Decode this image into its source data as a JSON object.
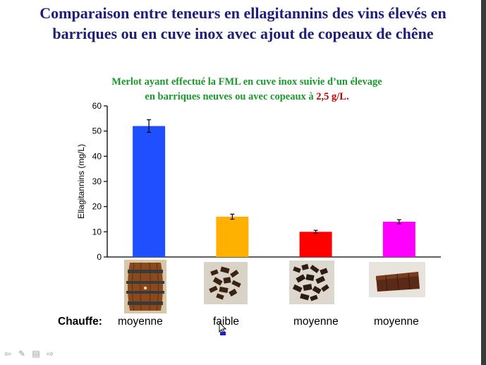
{
  "slide": {
    "title_line1": "Comparaison entre teneurs en ellagitannins des vins élevés en",
    "title_line2": "barriques ou en cuve inox avec ajout de copeaux de chêne",
    "subtitle_line1": "Merlot ayant effectué la FML en cuve inox suivie d’un élevage",
    "subtitle_line2_prefix": "en barriques neuves ou avec copeaux à ",
    "subtitle_line2_highlight": "2,5 g/L."
  },
  "chauffe": {
    "label": "Chauffe:",
    "values": [
      "moyenne",
      "faible",
      "moyenne",
      "moyenne"
    ]
  },
  "colors": {
    "title": "#1f1f7a",
    "subtitle": "#1a9a2a",
    "highlight": "#c00000"
  },
  "chart_data": {
    "type": "bar",
    "ylabel": "Ellagitannins (mg/L)",
    "xlabel": "",
    "ylim": [
      0,
      60
    ],
    "yticks": [
      0,
      10,
      20,
      30,
      40,
      50,
      60
    ],
    "values": [
      52,
      16,
      10,
      14
    ],
    "errors": [
      2.5,
      1.0,
      0.6,
      0.8
    ],
    "colors": [
      "#1f4fff",
      "#ffb000",
      "#ff0000",
      "#ff00ff"
    ],
    "grid": false
  },
  "icons": [
    "barrel-image",
    "oak-chips-image",
    "oak-chips-image",
    "oak-staves-image"
  ]
}
